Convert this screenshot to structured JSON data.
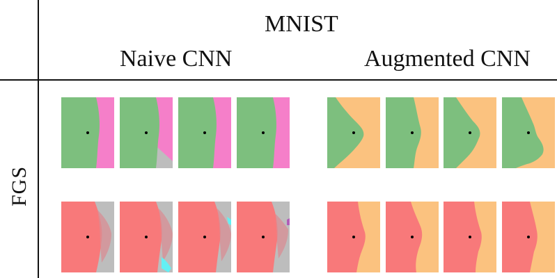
{
  "title": "MNIST",
  "columns": [
    {
      "label": "Naive CNN"
    },
    {
      "label": "Augmented CNN"
    }
  ],
  "row_label": "FGS",
  "colors": {
    "green": "#7dbf7e",
    "pink": "#f57fc9",
    "gray": "#bdbdbd",
    "orange": "#fbc27f",
    "red": "#f8797a",
    "cyan": "#63f0f4",
    "purple": "#b15db8",
    "lines": "#111111",
    "dot": "#000000"
  },
  "panels": {
    "naive_row1": 4,
    "aug_row1": 4,
    "naive_row2": 4,
    "aug_row2": 4
  }
}
